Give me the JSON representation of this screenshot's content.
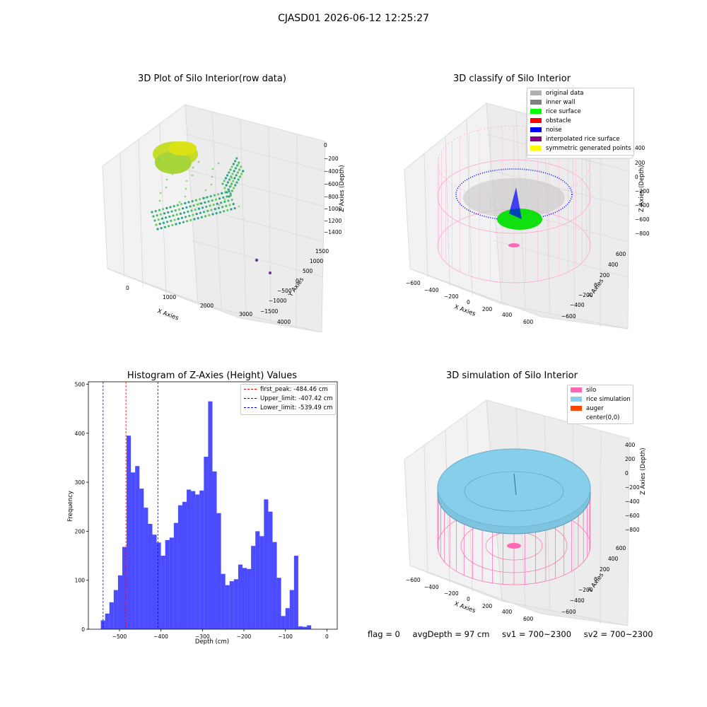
{
  "figure_title": "CJASD01 2026-06-12 12:25:27",
  "status": {
    "flag": "flag = 0",
    "avg_depth": "avgDepth = 97 cm",
    "sv1": "sv1 = 700~2300",
    "sv2": "sv2 = 700~2300"
  },
  "panels": {
    "raw": {
      "title": "3D Plot of Silo Interior(row data)",
      "xlabel": "X Axies",
      "ylabel": "Y Axies",
      "zlabel": "Z Axies (Depth)",
      "xticks": [
        "0",
        "1000",
        "2000",
        "3000",
        "4000"
      ],
      "yticks": [
        "1500",
        "1000",
        "500",
        "0",
        "−500",
        "−1000",
        "−1500"
      ],
      "zticks": [
        "0",
        "−200",
        "−400",
        "−600",
        "−800",
        "−1000",
        "−1200",
        "−1400"
      ]
    },
    "classify": {
      "title": "3D classify of Silo Interior",
      "xlabel": "X Axies",
      "ylabel": "Y Axies",
      "zlabel": "Z Axies (Depth)",
      "xticks": [
        "−600",
        "−400",
        "−200",
        "0",
        "200",
        "400",
        "600"
      ],
      "yticks": [
        "600",
        "400",
        "200",
        "0",
        "−200",
        "−400",
        "−600"
      ],
      "zticks": [
        "400",
        "200",
        "0",
        "−200",
        "−400",
        "−600",
        "−800"
      ],
      "legend": [
        {
          "label": "original data",
          "color": "#b0b0b0"
        },
        {
          "label": "inner wall",
          "color": "#808080"
        },
        {
          "label": "rice surface",
          "color": "#00ff00"
        },
        {
          "label": "obstacle",
          "color": "#ff0000"
        },
        {
          "label": "noise",
          "color": "#0000ff"
        },
        {
          "label": "interpolated rice surface",
          "color": "#800080"
        },
        {
          "label": "symmetric generated points",
          "color": "#ffff00"
        }
      ]
    },
    "simulation": {
      "title": "3D simulation of Silo Interior",
      "xlabel": "X Axies",
      "ylabel": "Y Axies",
      "zlabel": "Z Axies (Depth)",
      "xticks": [
        "−600",
        "−400",
        "−200",
        "0",
        "200",
        "400",
        "600"
      ],
      "yticks": [
        "600",
        "400",
        "200",
        "0",
        "−200",
        "−400",
        "−600"
      ],
      "zticks": [
        "400",
        "200",
        "0",
        "−200",
        "−400",
        "−600",
        "−800"
      ],
      "legend": [
        {
          "label": "silo",
          "color": "#ff69b4"
        },
        {
          "label": "rice simulation",
          "color": "#87ceeb"
        },
        {
          "label": "auger",
          "color": "#ff4500"
        },
        {
          "label": "center(0,0)",
          "color": "#ffffff"
        }
      ]
    }
  },
  "chart_data": [
    {
      "type": "bar",
      "title": "Histogram of Z-Axies (Height) Values",
      "xlabel": "Depth (cm)",
      "ylabel": "Frequency",
      "xlim": [
        -575,
        25
      ],
      "ylim": [
        0,
        505
      ],
      "xticks": [
        -500,
        -400,
        -300,
        -200,
        -100,
        0
      ],
      "yticks": [
        0,
        100,
        200,
        300,
        400,
        500
      ],
      "bar_color": "#0000ff",
      "bin_start": -545,
      "bin_width": 10.35,
      "values": [
        18,
        32,
        55,
        80,
        110,
        168,
        395,
        320,
        333,
        287,
        248,
        215,
        193,
        177,
        150,
        182,
        187,
        217,
        253,
        260,
        285,
        282,
        275,
        283,
        352,
        465,
        322,
        237,
        113,
        90,
        98,
        102,
        132,
        125,
        123,
        170,
        200,
        190,
        265,
        240,
        178,
        105,
        27,
        43,
        80,
        150,
        6,
        5,
        8
      ],
      "lines": [
        {
          "label": "first_peak: -484.46 cm",
          "x": -484.46,
          "color": "#ff0000"
        },
        {
          "label": "Upper_limit: -407.42 cm",
          "x": -407.42,
          "color": "#0000ff"
        },
        {
          "label": "Lower_limit: -539.49 cm",
          "x": -539.49,
          "color": "#0000ff"
        }
      ]
    }
  ]
}
